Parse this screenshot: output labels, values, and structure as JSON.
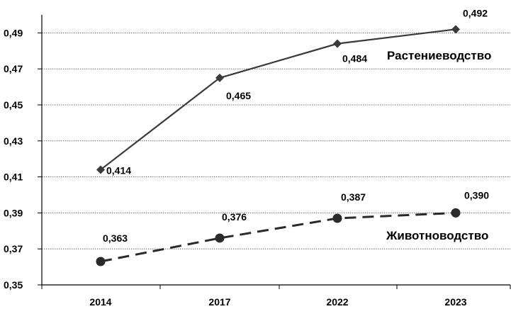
{
  "chart_data": {
    "type": "line",
    "categories": [
      "2014",
      "2017",
      "2022",
      "2023"
    ],
    "ylim": [
      0.35,
      0.5
    ],
    "yticks": [
      "0,35",
      "0,37",
      "0,39",
      "0,41",
      "0,43",
      "0,45",
      "0,47",
      "0,49"
    ],
    "grid": "horizontal dotted",
    "series": [
      {
        "name": "Растениеводство",
        "values": [
          0.414,
          0.465,
          0.484,
          0.492
        ],
        "labels": [
          "0,414",
          "0,465",
          "0,484",
          "0,492"
        ],
        "marker": "diamond",
        "line": "solid",
        "color": "#3a3a3a"
      },
      {
        "name": "Животноводство",
        "values": [
          0.363,
          0.376,
          0.387,
          0.39
        ],
        "labels": [
          "0,363",
          "0,376",
          "0,387",
          "0,390"
        ],
        "marker": "circle",
        "line": "dashed",
        "color": "#2a2a2a"
      }
    ]
  }
}
